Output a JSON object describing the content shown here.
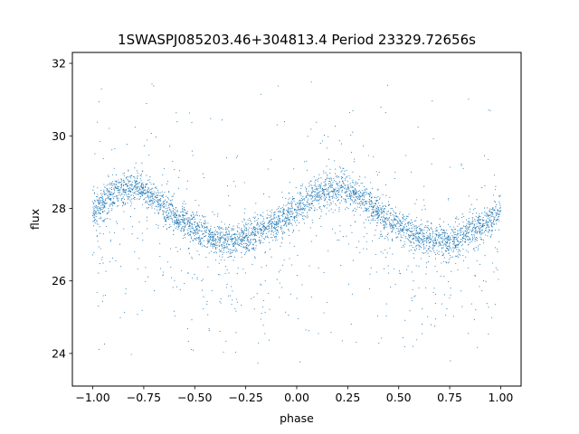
{
  "chart_data": {
    "type": "scatter",
    "title": "1SWASPJ085203.46+304813.4 Period 23329.72656s",
    "xlabel": "phase",
    "ylabel": "flux",
    "xlim": [
      -1.1,
      1.1
    ],
    "ylim": [
      23.1,
      32.3
    ],
    "xticks": [
      -1.0,
      -0.75,
      -0.5,
      -0.25,
      0.0,
      0.25,
      0.5,
      0.75,
      1.0
    ],
    "xtick_labels": [
      "−1.00",
      "−0.75",
      "−0.50",
      "−0.25",
      "0.00",
      "0.25",
      "0.50",
      "0.75",
      "1.00"
    ],
    "yticks": [
      24,
      26,
      28,
      30,
      32
    ],
    "ytick_labels": [
      "24",
      "26",
      "28",
      "30",
      "32"
    ],
    "grid": false,
    "legend": "none",
    "marker_color": "#1f77b4",
    "series": [
      {
        "x": [
          -1.0,
          -0.9,
          -0.8,
          -0.75,
          -0.7,
          -0.6,
          -0.5,
          -0.4,
          -0.3,
          -0.25,
          -0.2,
          -0.1,
          0.0,
          0.1,
          0.2,
          0.25,
          0.3,
          0.4,
          0.5,
          0.6,
          0.7,
          0.75,
          0.8,
          0.9,
          1.0
        ],
        "y": [
          27.9,
          28.4,
          28.6,
          28.5,
          28.3,
          27.8,
          27.4,
          27.1,
          27.1,
          27.2,
          27.3,
          27.6,
          28.0,
          28.4,
          28.55,
          28.55,
          28.4,
          27.9,
          27.5,
          27.2,
          27.1,
          27.1,
          27.2,
          27.5,
          27.9
        ]
      }
    ]
  }
}
